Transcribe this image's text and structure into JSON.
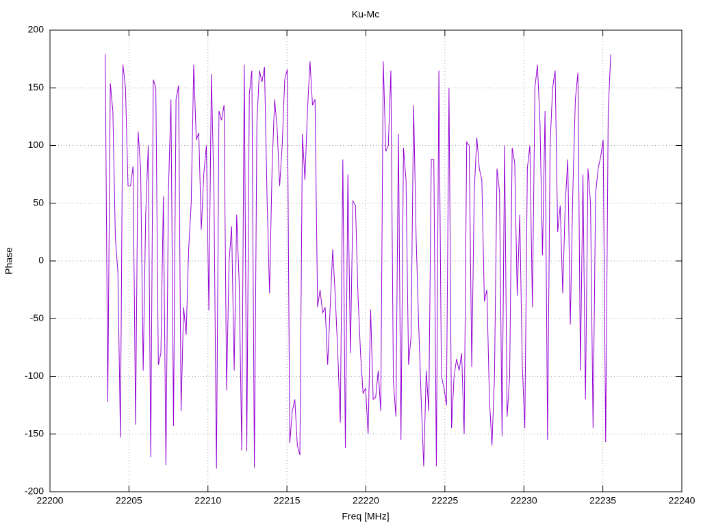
{
  "chart_data": {
    "type": "line",
    "title": "Ku-Mc",
    "xlabel": "Freq [MHz]",
    "ylabel": "Phase",
    "xlim": [
      22200,
      22240
    ],
    "xticks": [
      22200,
      22205,
      22210,
      22215,
      22220,
      22225,
      22230,
      22235,
      22240
    ],
    "ylim": [
      -200,
      200
    ],
    "yticks": [
      -200,
      -150,
      -100,
      -50,
      0,
      50,
      100,
      150,
      200
    ],
    "grid": true,
    "x": [
      22203.5,
      22203.66,
      22203.82,
      22203.98,
      22204.14,
      22204.3,
      22204.46,
      22204.62,
      22204.78,
      22204.94,
      22205.1,
      22205.26,
      22205.42,
      22205.58,
      22205.74,
      22205.9,
      22206.06,
      22206.22,
      22206.38,
      22206.54,
      22206.7,
      22206.86,
      22207.02,
      22207.18,
      22207.34,
      22207.5,
      22207.66,
      22207.82,
      22207.98,
      22208.14,
      22208.3,
      22208.46,
      22208.62,
      22208.78,
      22208.94,
      22209.1,
      22209.26,
      22209.42,
      22209.58,
      22209.74,
      22209.9,
      22210.06,
      22210.22,
      22210.38,
      22210.54,
      22210.7,
      22210.86,
      22211.02,
      22211.18,
      22211.34,
      22211.5,
      22211.66,
      22211.82,
      22211.98,
      22212.14,
      22212.3,
      22212.46,
      22212.62,
      22212.78,
      22212.94,
      22213.1,
      22213.26,
      22213.42,
      22213.58,
      22213.74,
      22213.9,
      22214.06,
      22214.22,
      22214.38,
      22214.54,
      22214.7,
      22214.86,
      22215.02,
      22215.18,
      22215.34,
      22215.5,
      22215.66,
      22215.82,
      22215.98,
      22216.14,
      22216.3,
      22216.46,
      22216.62,
      22216.78,
      22216.94,
      22217.1,
      22217.26,
      22217.42,
      22217.58,
      22217.74,
      22217.9,
      22218.06,
      22218.22,
      22218.38,
      22218.54,
      22218.7,
      22218.86,
      22219.02,
      22219.18,
      22219.34,
      22219.5,
      22219.66,
      22219.82,
      22219.98,
      22220.14,
      22220.3,
      22220.46,
      22220.62,
      22220.78,
      22220.94,
      22221.1,
      22221.26,
      22221.42,
      22221.58,
      22221.74,
      22221.9,
      22222.06,
      22222.22,
      22222.38,
      22222.54,
      22222.7,
      22222.86,
      22223.02,
      22223.18,
      22223.34,
      22223.5,
      22223.66,
      22223.82,
      22223.98,
      22224.14,
      22224.3,
      22224.46,
      22224.62,
      22224.78,
      22224.94,
      22225.1,
      22225.26,
      22225.42,
      22225.58,
      22225.74,
      22225.9,
      22226.06,
      22226.22,
      22226.38,
      22226.54,
      22226.7,
      22226.86,
      22227.02,
      22227.18,
      22227.34,
      22227.5,
      22227.66,
      22227.82,
      22227.98,
      22228.14,
      22228.3,
      22228.46,
      22228.62,
      22228.78,
      22228.94,
      22229.1,
      22229.26,
      22229.42,
      22229.58,
      22229.74,
      22229.9,
      22230.06,
      22230.22,
      22230.38,
      22230.54,
      22230.7,
      22230.86,
      22231.02,
      22231.18,
      22231.34,
      22231.5,
      22231.66,
      22231.82,
      22231.98,
      22232.14,
      22232.3,
      22232.46,
      22232.62,
      22232.78,
      22232.94,
      22233.1,
      22233.26,
      22233.42,
      22233.58,
      22233.74,
      22233.9,
      22234.06,
      22234.22,
      22234.38,
      22234.54,
      22234.7,
      22234.86,
      22235.02,
      22235.18,
      22235.34,
      22235.5
    ],
    "color": "#9400d3",
    "values": [
      179,
      -122,
      154,
      130,
      20,
      -10,
      -153,
      170,
      150,
      65,
      65,
      82,
      -142,
      112,
      80,
      -95,
      40,
      100,
      -170,
      157,
      150,
      -90,
      -80,
      56,
      -177,
      60,
      140,
      -143,
      140,
      152,
      -130,
      -40,
      -64,
      10,
      50,
      170,
      105,
      111,
      27,
      76,
      100,
      -43,
      162,
      60,
      -180,
      130,
      122,
      135,
      -112,
      0,
      30,
      -95,
      40,
      -20,
      -164,
      170,
      -165,
      145,
      165,
      -179,
      120,
      165,
      155,
      168,
      56,
      -28,
      80,
      140,
      115,
      65,
      100,
      157,
      166,
      -158,
      -130,
      -120,
      -160,
      -168,
      110,
      70,
      130,
      173,
      135,
      140,
      -40,
      -25,
      -45,
      -40,
      -90,
      -40,
      10,
      -30,
      -80,
      -140,
      88,
      -162,
      75,
      -80,
      52,
      48,
      -30,
      -80,
      -115,
      -110,
      -150,
      -42,
      -120,
      -118,
      -95,
      -130,
      173,
      95,
      100,
      165,
      -105,
      -135,
      110,
      -155,
      98,
      70,
      -90,
      -65,
      135,
      20,
      -55,
      -120,
      -178,
      -95,
      -130,
      88,
      88,
      -178,
      165,
      -100,
      -110,
      -125,
      150,
      -145,
      -100,
      -85,
      -95,
      -80,
      -150,
      103,
      100,
      -92,
      60,
      107,
      80,
      70,
      -35,
      -25,
      -120,
      -160,
      -100,
      80,
      60,
      -152,
      100,
      -135,
      -100,
      98,
      85,
      -30,
      40,
      -90,
      -145,
      80,
      100,
      -40,
      150,
      170,
      120,
      5,
      130,
      -155,
      100,
      150,
      165,
      25,
      48,
      -28,
      50,
      88,
      -55,
      60,
      140,
      163,
      -95,
      75,
      -120,
      80,
      50,
      -145,
      58,
      80,
      90,
      105,
      -157,
      130,
      179
    ]
  }
}
